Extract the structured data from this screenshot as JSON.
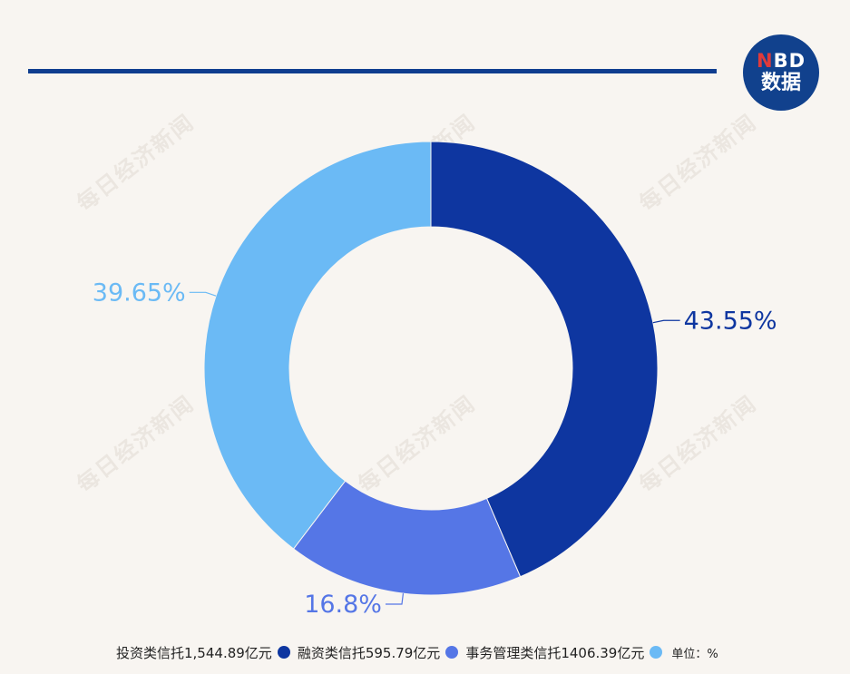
{
  "logo": {
    "line1_n": "N",
    "line1_rest": "BD",
    "line2": "数据"
  },
  "watermark_text": "每日经济新闻",
  "legend": {
    "items": [
      {
        "label": "投资类信托1,544.89亿元",
        "color": "#0e36a0"
      },
      {
        "label": "融资类信托595.79亿元",
        "color": "#5576e6"
      },
      {
        "label": "事务管理类信托1406.39亿元",
        "color": "#6bbaf5"
      }
    ],
    "unit": "单位：%"
  },
  "chart_data": {
    "type": "pie",
    "donut": true,
    "slices": [
      {
        "value": 43.55,
        "label": "43.55%",
        "color": "#0e36a0"
      },
      {
        "value": 16.8,
        "label": "16.8%",
        "color": "#5576e6"
      },
      {
        "value": 39.65,
        "label": "39.65%",
        "color": "#6bbaf5"
      }
    ],
    "start_angle": "top",
    "direction": "clockwise",
    "legend_position": "bottom"
  }
}
